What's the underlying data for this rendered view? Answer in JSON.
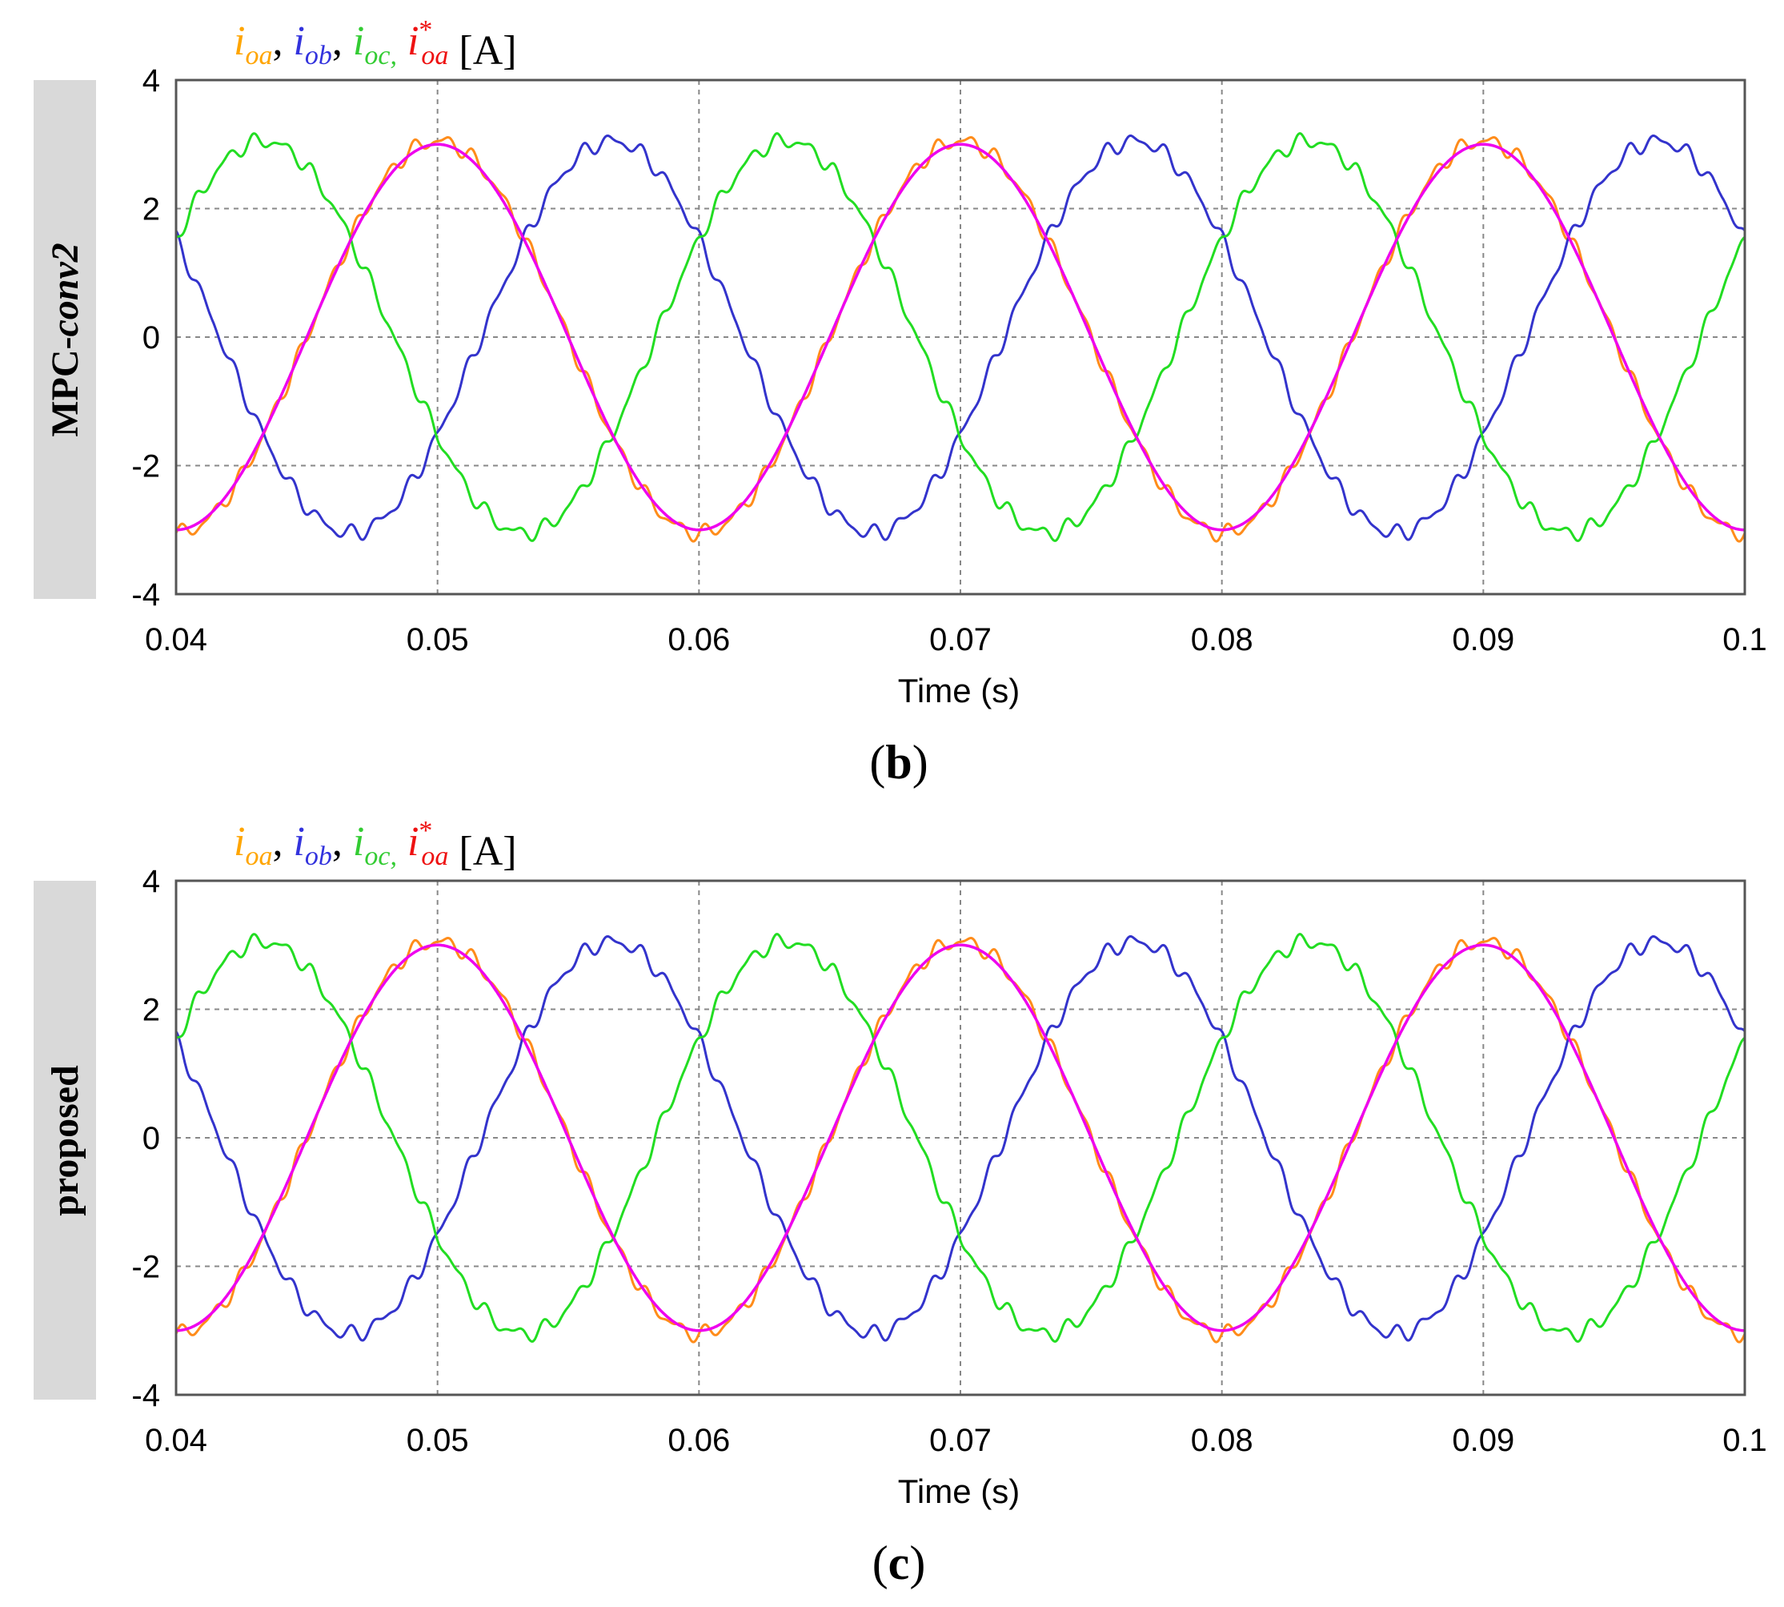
{
  "chart_data": [
    {
      "type": "line",
      "panel_label": "(b)",
      "panel_label_letter": "b",
      "side_label_prefix": "MPC-",
      "side_label_emph": "conv2",
      "legend": [
        {
          "symbol": "i",
          "sub": "oa",
          "sep": ",",
          "color": "#ffa500"
        },
        {
          "symbol": "i",
          "sub": "ob",
          "sep": ",",
          "color": "#3333dd"
        },
        {
          "symbol": "i",
          "sub": "oc,",
          "sep": "",
          "color": "#33cc33"
        },
        {
          "symbol": "i",
          "sub": "oa",
          "sup": "*",
          "sep": "",
          "color": "#ee1111"
        }
      ],
      "legend_unit": "[A]",
      "xlabel": "Time (s)",
      "ylabel": "",
      "xlim": [
        0.04,
        0.1
      ],
      "ylim": [
        -4,
        4
      ],
      "xticks": [
        "0.04",
        "0.05",
        "0.06",
        "0.07",
        "0.08",
        "0.09",
        "0.1"
      ],
      "yticks": [
        "4",
        "2",
        "0",
        "-2",
        "-4"
      ],
      "grid": true,
      "frequency_hz": 50,
      "series": [
        {
          "key": "ioa",
          "color": "#ff8c1a",
          "amplitude": 3.05,
          "phase_deg": 0,
          "ripple": 0.09
        },
        {
          "key": "iob",
          "color": "#3333cc",
          "amplitude": 3.05,
          "phase_deg": -120,
          "ripple": 0.09
        },
        {
          "key": "ioc",
          "color": "#22dd22",
          "amplitude": 3.05,
          "phase_deg": 120,
          "ripple": 0.09
        },
        {
          "key": "ioa_ref",
          "color": "#ee00ee",
          "amplitude": 3.0,
          "phase_deg": 0,
          "ripple": 0
        }
      ]
    },
    {
      "type": "line",
      "panel_label": "(c)",
      "panel_label_letter": "c",
      "side_label_prefix": "proposed",
      "side_label_emph": "",
      "legend": [
        {
          "symbol": "i",
          "sub": "oa",
          "sep": ",",
          "color": "#ffa500"
        },
        {
          "symbol": "i",
          "sub": "ob",
          "sep": ",",
          "color": "#3333dd"
        },
        {
          "symbol": "i",
          "sub": "oc,",
          "sep": "",
          "color": "#33cc33"
        },
        {
          "symbol": "i",
          "sub": "oa",
          "sup": "*",
          "sep": "",
          "color": "#ee1111"
        }
      ],
      "legend_unit": "[A]",
      "xlabel": "Time (s)",
      "ylabel": "",
      "xlim": [
        0.04,
        0.1
      ],
      "ylim": [
        -4,
        4
      ],
      "xticks": [
        "0.04",
        "0.05",
        "0.06",
        "0.07",
        "0.08",
        "0.09",
        "0.1"
      ],
      "yticks": [
        "4",
        "2",
        "0",
        "-2",
        "-4"
      ],
      "grid": true,
      "frequency_hz": 50,
      "series": [
        {
          "key": "ioa",
          "color": "#ff8c1a",
          "amplitude": 3.05,
          "phase_deg": 0,
          "ripple": 0.09
        },
        {
          "key": "iob",
          "color": "#3333cc",
          "amplitude": 3.05,
          "phase_deg": -120,
          "ripple": 0.09
        },
        {
          "key": "ioc",
          "color": "#22dd22",
          "amplitude": 3.05,
          "phase_deg": 120,
          "ripple": 0.09
        },
        {
          "key": "ioa_ref",
          "color": "#ee00ee",
          "amplitude": 3.0,
          "phase_deg": 0,
          "ripple": 0
        }
      ]
    }
  ]
}
